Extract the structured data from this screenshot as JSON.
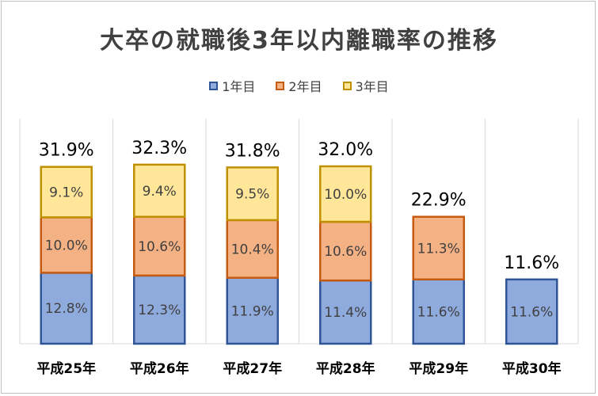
{
  "chart_data": {
    "type": "bar",
    "stacked": true,
    "title": "大卒の就職後3年以内離職率の推移",
    "categories": [
      "平成25年",
      "平成26年",
      "平成27年",
      "平成28年",
      "平成29年",
      "平成30年"
    ],
    "series": [
      {
        "name": "1年目",
        "values": [
          12.8,
          12.3,
          11.9,
          11.4,
          11.6,
          11.6
        ],
        "labels": [
          "12.8%",
          "12.3%",
          "11.9%",
          "11.4%",
          "11.6%",
          "11.6%"
        ],
        "fill": "#8faadc",
        "stroke": "#2f5597"
      },
      {
        "name": "2年目",
        "values": [
          10.0,
          10.6,
          10.4,
          10.6,
          11.3,
          null
        ],
        "labels": [
          "10.0%",
          "10.6%",
          "10.4%",
          "10.6%",
          "11.3%",
          null
        ],
        "fill": "#f4b183",
        "stroke": "#c55a11"
      },
      {
        "name": "3年目",
        "values": [
          9.1,
          9.4,
          9.5,
          10.0,
          null,
          null
        ],
        "labels": [
          "9.1%",
          "9.4%",
          "9.5%",
          "10.0%",
          null,
          null
        ],
        "fill": "#ffe699",
        "stroke": "#bf9000"
      }
    ],
    "totals": [
      "31.9%",
      "32.3%",
      "31.8%",
      "32.0%",
      "22.9%",
      "11.6%"
    ],
    "total_values": [
      31.9,
      32.3,
      31.8,
      32.0,
      22.9,
      11.6
    ],
    "ylim": [
      0,
      40
    ],
    "legend_position": "top-center",
    "grid": false,
    "category_separators": true
  }
}
